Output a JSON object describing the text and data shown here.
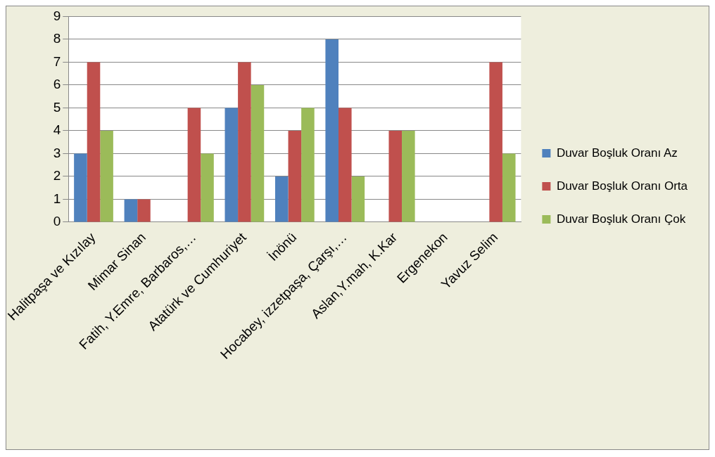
{
  "chart_data": {
    "type": "bar",
    "categories": [
      "Halitpaşa ve Kızılay",
      "Mimar Sinan",
      "Fatih, Y.Emre, Barbaros,…",
      "Atatürk ve Cumhuriyet",
      "İnönü",
      "Hocabey, izzetpaşa, Çarşı,…",
      "Aslan,Y.mah, K.Kar",
      "Ergenekon",
      "Yavuz Selim"
    ],
    "series": [
      {
        "name": "Duvar Boşluk Oranı Az",
        "color": "#4f81bd",
        "values": [
          3,
          1,
          0,
          5,
          2,
          8,
          0,
          0,
          0
        ]
      },
      {
        "name": "Duvar Boşluk Oranı Orta",
        "color": "#c0504d",
        "values": [
          7,
          1,
          5,
          7,
          4,
          5,
          4,
          0,
          7
        ]
      },
      {
        "name": "Duvar Boşluk Oranı Çok",
        "color": "#9bbb59",
        "values": [
          4,
          0,
          3,
          6,
          5,
          2,
          4,
          0,
          3
        ]
      }
    ],
    "ylim": [
      0,
      9
    ],
    "yticks": [
      0,
      1,
      2,
      3,
      4,
      5,
      6,
      7,
      8,
      9
    ],
    "grid": "y",
    "legend": "right"
  }
}
